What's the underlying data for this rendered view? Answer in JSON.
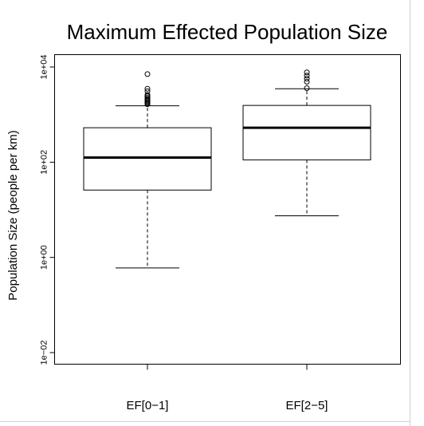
{
  "chart_data": {
    "type": "box",
    "title": "Maximum Effected Population Size",
    "ylabel": "Population Size (people per km)",
    "xlabel": "",
    "y_scale": "log10",
    "ylim": [
      0.008,
      16000
    ],
    "y_ticks": [
      {
        "value": 0.01,
        "label": "1e−02"
      },
      {
        "value": 1,
        "label": "1e+00"
      },
      {
        "value": 100,
        "label": "1e+02"
      },
      {
        "value": 10000,
        "label": "1e+04"
      }
    ],
    "categories": [
      "EF[0−1]",
      "EF[2−5]"
    ],
    "boxes": [
      {
        "category": "EF[0−1]",
        "whisker_low": 0.6,
        "q1": 26,
        "median": 125,
        "q3": 530,
        "whisker_high": 1530,
        "outliers": [
          1650,
          1750,
          1850,
          1950,
          2050,
          2150,
          2300,
          2450,
          2600,
          3100,
          3500,
          7100
        ]
      },
      {
        "category": "EF[2−5]",
        "whisker_low": 7.5,
        "q1": 112,
        "median": 530,
        "q3": 1560,
        "whisker_high": 3500,
        "outliers": [
          3600,
          4900,
          5700,
          6600,
          7700
        ]
      }
    ],
    "grid": false,
    "legend": "none"
  }
}
